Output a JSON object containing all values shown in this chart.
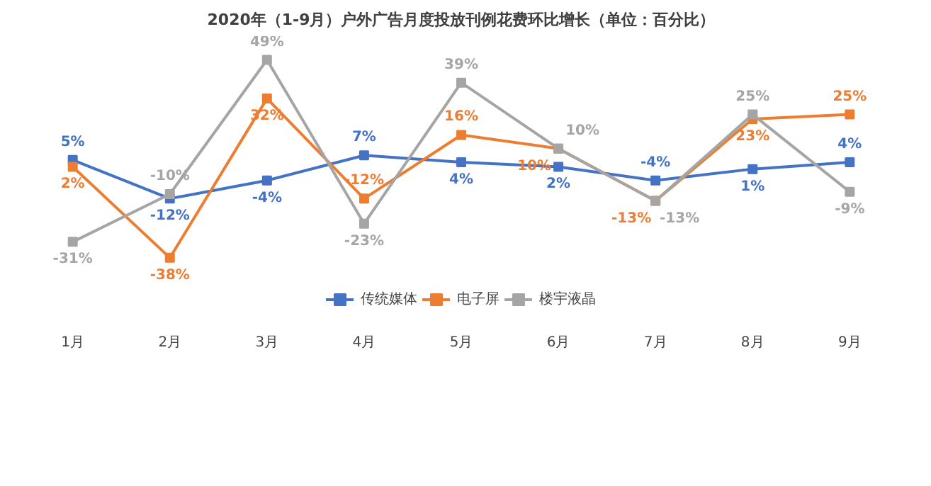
{
  "chart_data": {
    "type": "line",
    "title": "2020年（1-9月）户外广告月度投放刊例花费环比增长（单位：百分比）",
    "categories": [
      "1月",
      "2月",
      "3月",
      "4月",
      "5月",
      "6月",
      "7月",
      "8月",
      "9月"
    ],
    "series": [
      {
        "name": "传统媒体",
        "color": "#4472c4",
        "values": [
          5,
          -12,
          -4,
          7,
          4,
          2,
          -4,
          1,
          4
        ],
        "value_labels": [
          "5%",
          "-12%",
          "-4%",
          "7%",
          "4%",
          "2%",
          "-4%",
          "1%",
          "4%"
        ]
      },
      {
        "name": "电子屏",
        "color": "#ed7d31",
        "values": [
          2,
          -38,
          32,
          -12,
          16,
          10,
          -13,
          23,
          25
        ],
        "value_labels": [
          "2%",
          "-38%",
          "32%",
          "-12%",
          "16%",
          "10%",
          "-13%",
          "23%",
          "25%"
        ]
      },
      {
        "name": "楼宇液晶",
        "color": "#a5a5a5",
        "values": [
          -31,
          -10,
          49,
          -23,
          39,
          10,
          -13,
          25,
          -9
        ],
        "value_labels": [
          "-31%",
          "-10%",
          "49%",
          "-23%",
          "39%",
          "10%",
          "-13%",
          "25%",
          "-9%"
        ]
      }
    ],
    "marker": "square",
    "legend": "bottom",
    "tick_labels": "x"
  }
}
